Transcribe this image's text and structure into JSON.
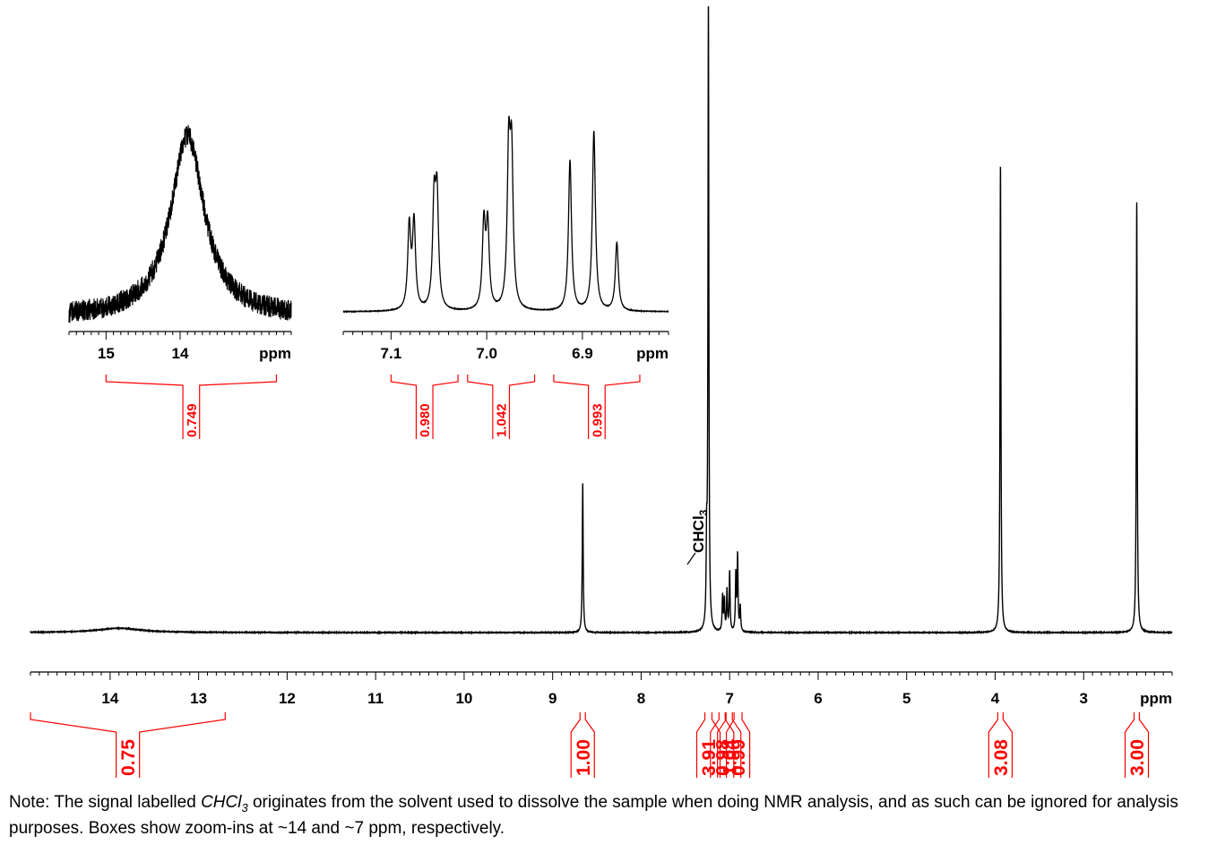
{
  "chart_data": [
    {
      "type": "line",
      "name": "main-spectrum",
      "xlabel": "ppm",
      "xlim": [
        14.9,
        2.0
      ],
      "x_reversed": true,
      "major_ticks": [
        14,
        13,
        12,
        11,
        10,
        9,
        8,
        7,
        6,
        5,
        4,
        3
      ],
      "peaks": [
        {
          "ppm": 13.9,
          "height": 0.007,
          "width": 0.6
        },
        {
          "ppm": 8.66,
          "height": 0.24
        },
        {
          "ppm": 7.26,
          "height": 0.12,
          "label": "CHCl3"
        },
        {
          "ppm": 7.24,
          "height": 1.0
        },
        {
          "ppm": 7.08,
          "height": 0.055
        },
        {
          "ppm": 7.06,
          "height": 0.05
        },
        {
          "ppm": 7.03,
          "height": 0.065
        },
        {
          "ppm": 7.0,
          "height": 0.095
        },
        {
          "ppm": 6.93,
          "height": 0.09
        },
        {
          "ppm": 6.91,
          "height": 0.12
        },
        {
          "ppm": 6.88,
          "height": 0.04
        },
        {
          "ppm": 3.94,
          "height": 0.75
        },
        {
          "ppm": 2.4,
          "height": 0.69
        }
      ],
      "integrals": [
        {
          "value": "0.75",
          "from": 14.9,
          "to": 12.7
        },
        {
          "value": "1.00",
          "from": 8.69,
          "to": 8.63
        },
        {
          "value": "3.91",
          "from": 7.28,
          "to": 7.2
        },
        {
          "value": "0.98",
          "from": 7.12,
          "to": 7.05
        },
        {
          "value": "1.04",
          "from": 7.04,
          "to": 6.97
        },
        {
          "value": "0.99",
          "from": 6.95,
          "to": 6.86
        },
        {
          "value": "3.08",
          "from": 3.97,
          "to": 3.91
        },
        {
          "value": "3.00",
          "from": 2.43,
          "to": 2.37
        }
      ],
      "solvent_label": "CHCl",
      "solvent_label_sub": "3"
    },
    {
      "type": "line",
      "name": "inset-14ppm",
      "xlabel": "ppm",
      "xlim": [
        15.5,
        12.5
      ],
      "x_reversed": true,
      "major_ticks": [
        15,
        14
      ],
      "peaks": [
        {
          "ppm": 13.9,
          "height": 1.0,
          "width": 0.55
        }
      ],
      "integrals": [
        {
          "value": "0.749",
          "from": 15.0,
          "to": 12.7
        }
      ]
    },
    {
      "type": "line",
      "name": "inset-7ppm",
      "xlabel": "ppm",
      "xlim": [
        7.15,
        6.81
      ],
      "x_reversed": true,
      "major_ticks": [
        7.1,
        7.0,
        6.9
      ],
      "major_tick_labels": [
        "7.1",
        "7.0",
        "6.9"
      ],
      "peaks": [
        {
          "ppm": 7.081,
          "height": 0.46
        },
        {
          "ppm": 7.076,
          "height": 0.48
        },
        {
          "ppm": 7.055,
          "height": 0.57
        },
        {
          "ppm": 7.052,
          "height": 0.6
        },
        {
          "ppm": 7.003,
          "height": 0.47
        },
        {
          "ppm": 6.999,
          "height": 0.46
        },
        {
          "ppm": 6.977,
          "height": 0.84
        },
        {
          "ppm": 6.974,
          "height": 0.8
        },
        {
          "ppm": 6.913,
          "height": 0.84
        },
        {
          "ppm": 6.888,
          "height": 1.0
        },
        {
          "ppm": 6.864,
          "height": 0.38
        }
      ],
      "integrals": [
        {
          "value": "0.980",
          "from": 7.1,
          "to": 7.03
        },
        {
          "value": "1.042",
          "from": 7.02,
          "to": 6.95
        },
        {
          "value": "0.993",
          "from": 6.93,
          "to": 6.84
        }
      ]
    }
  ],
  "note": "Note: The signal labelled CHCl3 originates from the solvent used to dissolve the sample when doing NMR analysis, and as such can be ignored for analysis purposes. Boxes show zoom-ins at ~14 and ~7 ppm, respectively.",
  "note_parts": {
    "before": "Note: The signal labelled ",
    "em": "CHCl",
    "em_sub": "3",
    "after": " originates from the solvent used to dissolve the sample when doing NMR analysis, and as such can be ignored for analysis purposes. Boxes show zoom-ins at ~14 and ~7 ppm, respectively."
  }
}
